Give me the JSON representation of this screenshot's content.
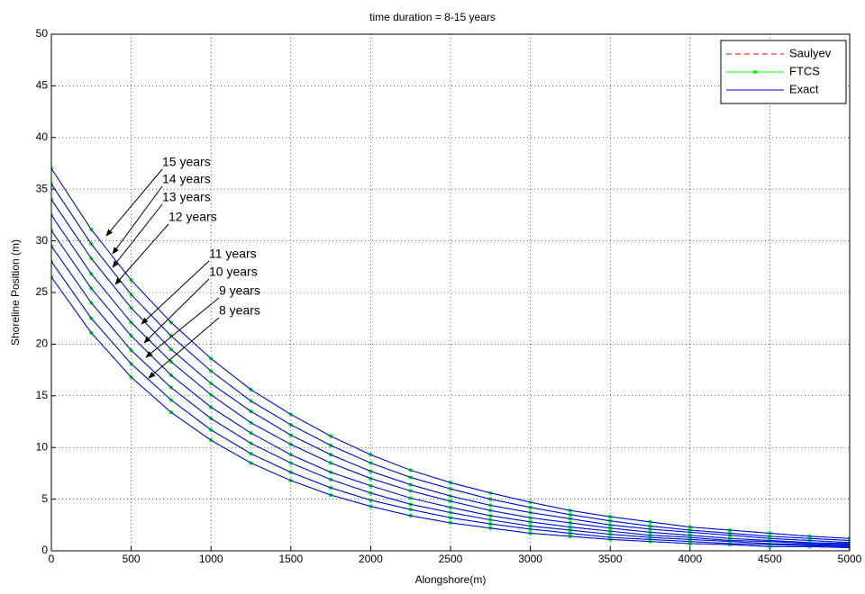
{
  "chart_data": {
    "type": "line",
    "title": "time duration = 8-15 years",
    "xlabel": "Alongshore(m)",
    "ylabel": "Shoreline Position (m)",
    "x": [
      0,
      250,
      500,
      750,
      1000,
      1250,
      1500,
      1750,
      2000,
      2250,
      2500,
      2750,
      3000,
      3250,
      3500,
      3750,
      4000,
      4250,
      4500,
      4750,
      5000
    ],
    "xlim": [
      0,
      5000
    ],
    "xticks": [
      0,
      500,
      1000,
      1500,
      2000,
      2500,
      3000,
      3500,
      4000,
      4500,
      5000
    ],
    "ylim": [
      0,
      50
    ],
    "yticks": [
      0,
      5,
      10,
      15,
      20,
      25,
      30,
      35,
      40,
      45,
      50
    ],
    "grid": true,
    "legend": "upper right",
    "series": [
      {
        "name": "Saulyev",
        "color": "#ff0000",
        "dash": "dashed",
        "marker": "none",
        "values": [
          [
            26.5,
            21.1,
            16.8,
            13.4,
            10.7,
            8.5,
            6.8,
            5.4,
            4.3,
            3.4,
            2.7,
            2.2,
            1.7,
            1.4,
            1.1,
            0.9,
            0.7,
            0.6,
            0.4,
            0.4,
            0.3
          ],
          [
            28,
            22.5,
            18.1,
            14.6,
            11.7,
            9.4,
            7.6,
            6.1,
            4.9,
            4.0,
            3.2,
            2.6,
            2.1,
            1.7,
            1.3,
            1.1,
            0.9,
            0.7,
            0.6,
            0.5,
            0.4
          ],
          [
            29.5,
            24.0,
            19.4,
            15.8,
            12.8,
            10.4,
            8.5,
            6.9,
            5.6,
            4.5,
            3.7,
            3.0,
            2.4,
            2.0,
            1.6,
            1.3,
            1.1,
            0.9,
            0.7,
            0.6,
            0.5
          ],
          [
            31,
            25.4,
            20.8,
            17.0,
            13.9,
            11.4,
            9.3,
            7.6,
            6.3,
            5.1,
            4.2,
            3.4,
            2.8,
            2.3,
            1.9,
            1.5,
            1.3,
            1.0,
            0.9,
            0.7,
            0.6
          ],
          [
            32.5,
            26.8,
            22.1,
            18.3,
            15.1,
            12.4,
            10.3,
            8.5,
            7.0,
            5.8,
            4.8,
            3.9,
            3.2,
            2.7,
            2.2,
            1.8,
            1.5,
            1.2,
            1.0,
            0.8,
            0.7
          ],
          [
            34,
            28.3,
            23.5,
            19.5,
            16.2,
            13.5,
            11.2,
            9.3,
            7.7,
            6.4,
            5.3,
            4.4,
            3.7,
            3.1,
            2.5,
            2.1,
            1.8,
            1.5,
            1.2,
            1.0,
            0.8
          ],
          [
            35.5,
            29.7,
            24.8,
            20.8,
            17.4,
            14.5,
            12.2,
            10.2,
            8.5,
            7.1,
            6.0,
            5.0,
            4.2,
            3.5,
            2.9,
            2.4,
            2.0,
            1.7,
            1.4,
            1.2,
            1.0
          ],
          [
            37,
            31.1,
            26.2,
            22.1,
            18.6,
            15.6,
            13.2,
            11.1,
            9.3,
            7.8,
            6.6,
            5.6,
            4.7,
            3.9,
            3.3,
            2.8,
            2.3,
            2.0,
            1.7,
            1.4,
            1.2
          ]
        ]
      },
      {
        "name": "FTCS",
        "color": "#00ff00",
        "dash": "solid",
        "marker": "dot",
        "values": [
          [
            26.5,
            21.1,
            16.8,
            13.4,
            10.7,
            8.5,
            6.8,
            5.4,
            4.3,
            3.4,
            2.7,
            2.2,
            1.7,
            1.4,
            1.1,
            0.9,
            0.7,
            0.6,
            0.4,
            0.4,
            0.3
          ],
          [
            28,
            22.5,
            18.1,
            14.6,
            11.7,
            9.4,
            7.6,
            6.1,
            4.9,
            4.0,
            3.2,
            2.6,
            2.1,
            1.7,
            1.3,
            1.1,
            0.9,
            0.7,
            0.6,
            0.5,
            0.4
          ],
          [
            29.5,
            24.0,
            19.4,
            15.8,
            12.8,
            10.4,
            8.5,
            6.9,
            5.6,
            4.5,
            3.7,
            3.0,
            2.4,
            2.0,
            1.6,
            1.3,
            1.1,
            0.9,
            0.7,
            0.6,
            0.5
          ],
          [
            31,
            25.4,
            20.8,
            17.0,
            13.9,
            11.4,
            9.3,
            7.6,
            6.3,
            5.1,
            4.2,
            3.4,
            2.8,
            2.3,
            1.9,
            1.5,
            1.3,
            1.0,
            0.9,
            0.7,
            0.6
          ],
          [
            32.5,
            26.8,
            22.1,
            18.3,
            15.1,
            12.4,
            10.3,
            8.5,
            7.0,
            5.8,
            4.8,
            3.9,
            3.2,
            2.7,
            2.2,
            1.8,
            1.5,
            1.2,
            1.0,
            0.8,
            0.7
          ],
          [
            34,
            28.3,
            23.5,
            19.5,
            16.2,
            13.5,
            11.2,
            9.3,
            7.7,
            6.4,
            5.3,
            4.4,
            3.7,
            3.1,
            2.5,
            2.1,
            1.8,
            1.5,
            1.2,
            1.0,
            0.8
          ],
          [
            35.5,
            29.7,
            24.8,
            20.8,
            17.4,
            14.5,
            12.2,
            10.2,
            8.5,
            7.1,
            6.0,
            5.0,
            4.2,
            3.5,
            2.9,
            2.4,
            2.0,
            1.7,
            1.4,
            1.2,
            1.0
          ],
          [
            37,
            31.1,
            26.2,
            22.1,
            18.6,
            15.6,
            13.2,
            11.1,
            9.3,
            7.8,
            6.6,
            5.6,
            4.7,
            3.9,
            3.3,
            2.8,
            2.3,
            2.0,
            1.7,
            1.4,
            1.2
          ]
        ]
      },
      {
        "name": "Exact",
        "color": "#0000ff",
        "dash": "solid",
        "marker": "none",
        "values": [
          [
            26.5,
            21.1,
            16.8,
            13.4,
            10.7,
            8.5,
            6.8,
            5.4,
            4.3,
            3.4,
            2.7,
            2.2,
            1.7,
            1.4,
            1.1,
            0.9,
            0.7,
            0.6,
            0.4,
            0.4,
            0.3
          ],
          [
            28,
            22.5,
            18.1,
            14.6,
            11.7,
            9.4,
            7.6,
            6.1,
            4.9,
            4.0,
            3.2,
            2.6,
            2.1,
            1.7,
            1.3,
            1.1,
            0.9,
            0.7,
            0.6,
            0.5,
            0.4
          ],
          [
            29.5,
            24.0,
            19.4,
            15.8,
            12.8,
            10.4,
            8.5,
            6.9,
            5.6,
            4.5,
            3.7,
            3.0,
            2.4,
            2.0,
            1.6,
            1.3,
            1.1,
            0.9,
            0.7,
            0.6,
            0.5
          ],
          [
            31,
            25.4,
            20.8,
            17.0,
            13.9,
            11.4,
            9.3,
            7.6,
            6.3,
            5.1,
            4.2,
            3.4,
            2.8,
            2.3,
            1.9,
            1.5,
            1.3,
            1.0,
            0.9,
            0.7,
            0.6
          ],
          [
            32.5,
            26.8,
            22.1,
            18.3,
            15.1,
            12.4,
            10.3,
            8.5,
            7.0,
            5.8,
            4.8,
            3.9,
            3.2,
            2.7,
            2.2,
            1.8,
            1.5,
            1.2,
            1.0,
            0.8,
            0.7
          ],
          [
            34,
            28.3,
            23.5,
            19.5,
            16.2,
            13.5,
            11.2,
            9.3,
            7.7,
            6.4,
            5.3,
            4.4,
            3.7,
            3.1,
            2.5,
            2.1,
            1.8,
            1.5,
            1.2,
            1.0,
            0.8
          ],
          [
            35.5,
            29.7,
            24.8,
            20.8,
            17.4,
            14.5,
            12.2,
            10.2,
            8.5,
            7.1,
            6.0,
            5.0,
            4.2,
            3.5,
            2.9,
            2.4,
            2.0,
            1.7,
            1.4,
            1.2,
            1.0
          ],
          [
            37,
            31.1,
            26.2,
            22.1,
            18.6,
            15.6,
            13.2,
            11.1,
            9.3,
            7.8,
            6.6,
            5.6,
            4.7,
            3.9,
            3.3,
            2.8,
            2.3,
            2.0,
            1.7,
            1.4,
            1.2
          ]
        ]
      }
    ],
    "annotations": [
      "15 years",
      "14 years",
      "13 years",
      "12 years",
      "11 years",
      "10 years",
      "9 years",
      "8 years"
    ]
  }
}
